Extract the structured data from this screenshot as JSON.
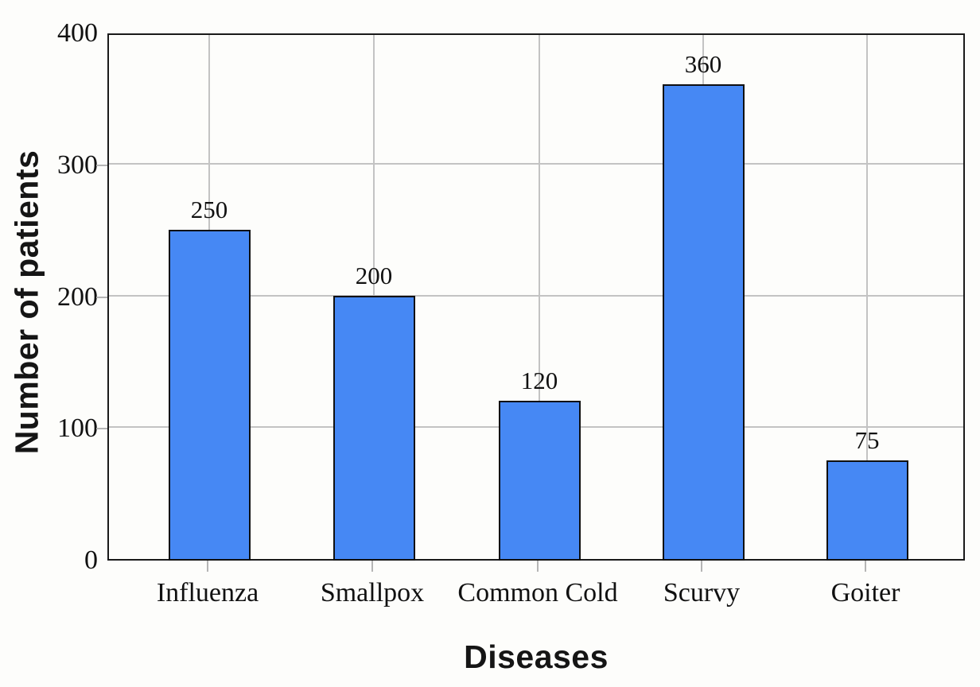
{
  "chart_data": {
    "type": "bar",
    "title": "",
    "categories": [
      "Influenza",
      "Smallpox",
      "Common Cold",
      "Scurvy",
      "Goiter"
    ],
    "values": [
      250,
      200,
      120,
      360,
      75
    ],
    "bar_value_labels": [
      "250",
      "200",
      "120",
      "360",
      "75"
    ],
    "xlabel": "Diseases",
    "ylabel": "Number of patients",
    "ylim": [
      0,
      400
    ],
    "yticks": [
      0,
      100,
      200,
      300,
      400
    ],
    "grid": "on",
    "legend": "none",
    "bar_color": "#4688f4",
    "bar_border_color": "#101010",
    "grid_color": "#c3c3c3",
    "axis_frame_color": "#1a1a1a",
    "text_color": "#111111",
    "background_color": "#fdfdfb"
  }
}
